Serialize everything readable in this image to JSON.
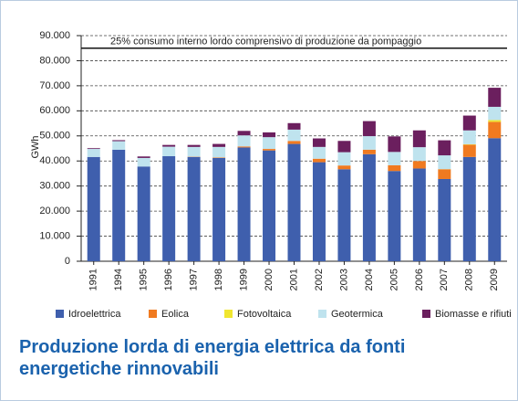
{
  "chart_data": {
    "type": "bar",
    "stacked": true,
    "title": "Produzione lorda di energia elettrica da fonti energetiche rinnovabili",
    "y_label": "GWh",
    "categories": [
      "1991",
      "1994",
      "1995",
      "1996",
      "1997",
      "1998",
      "1999",
      "2000",
      "2001",
      "2002",
      "2003",
      "2004",
      "2005",
      "2006",
      "2007",
      "2008",
      "2009"
    ],
    "series": [
      {
        "name": "Idroelettrica",
        "color": "#3f5fad",
        "values": [
          41600,
          44500,
          37800,
          41900,
          41600,
          41200,
          45400,
          44200,
          46800,
          39500,
          36700,
          42700,
          36000,
          37000,
          32800,
          41600,
          49100
        ]
      },
      {
        "name": "Eolica",
        "color": "#f07a20",
        "values": [
          0,
          0,
          0,
          0,
          100,
          200,
          400,
          600,
          1200,
          1400,
          1500,
          1800,
          2300,
          3000,
          3900,
          4900,
          6500
        ]
      },
      {
        "name": "Fotovoltaica",
        "color": "#f0e630",
        "values": [
          0,
          0,
          0,
          0,
          0,
          0,
          0,
          0,
          0,
          0,
          0,
          0,
          0,
          0,
          40,
          200,
          700
        ]
      },
      {
        "name": "Geotermica",
        "color": "#bfe3ee",
        "values": [
          3200,
          3400,
          3400,
          3800,
          3900,
          4200,
          4400,
          4700,
          4500,
          4700,
          5300,
          5400,
          5300,
          5500,
          5500,
          5500,
          5300
        ]
      },
      {
        "name": "Biomasse e rifiuti",
        "color": "#6b1f5e",
        "values": [
          300,
          400,
          600,
          700,
          800,
          1200,
          1800,
          1900,
          2600,
          3400,
          4500,
          6000,
          6200,
          6700,
          6000,
          5900,
          7600
        ]
      }
    ],
    "reference_line": {
      "value": 85000,
      "label": "25% consumo interno lordo comprensivo di produzione da pompaggio"
    },
    "ylim": [
      0,
      90000
    ],
    "yticks": [
      0,
      {
        "value": 10000,
        "label": "10.000"
      },
      {
        "value": 20000,
        "label": "20.000"
      },
      {
        "value": 30000,
        "label": "30.000"
      },
      {
        "value": 40000,
        "label": "40.000"
      },
      {
        "value": 50000,
        "label": "50.000"
      },
      {
        "value": 60000,
        "label": "60.000"
      },
      {
        "value": 70000,
        "label": "70.000"
      },
      {
        "value": 80000,
        "label": "80.000"
      },
      {
        "value": 90000,
        "label": "90.000"
      }
    ],
    "grid": true
  }
}
